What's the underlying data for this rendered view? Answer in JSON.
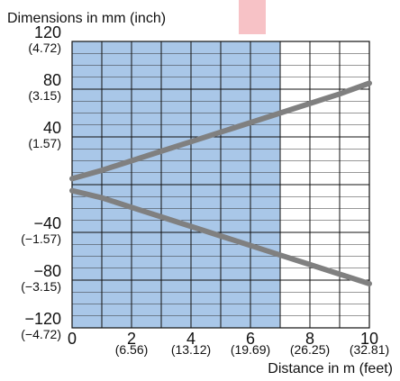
{
  "chart_data": {
    "type": "line",
    "ylabel": "Dimensions in mm (inch)",
    "xlabel": "Distance in m (feet)",
    "xlim": [
      0,
      10
    ],
    "ylim": [
      -120,
      120
    ],
    "x_ticks": [
      {
        "value": 0,
        "label": "0",
        "sublabel": ""
      },
      {
        "value": 2,
        "label": "2",
        "sublabel": "(6.56)"
      },
      {
        "value": 4,
        "label": "4",
        "sublabel": "(13.12)"
      },
      {
        "value": 6,
        "label": "6",
        "sublabel": "(19.69)"
      },
      {
        "value": 8,
        "label": "8",
        "sublabel": "(26.25)"
      },
      {
        "value": 10,
        "label": "10",
        "sublabel": "(32.81)"
      }
    ],
    "y_ticks": [
      {
        "value": 120,
        "label": "120",
        "sublabel": "(4.72)"
      },
      {
        "value": 80,
        "label": "80",
        "sublabel": "(3.15)"
      },
      {
        "value": 40,
        "label": "40",
        "sublabel": "(1.57)"
      },
      {
        "value": -40,
        "label": "−40",
        "sublabel": "(−1.57)"
      },
      {
        "value": -80,
        "label": "−80",
        "sublabel": "(−3.15)"
      },
      {
        "value": -120,
        "label": "−120",
        "sublabel": "(−4.72)"
      }
    ],
    "grid": {
      "x_step": 1,
      "y_step": 10
    },
    "shaded_region": {
      "x": [
        0,
        7
      ],
      "color": "#a9c7e8"
    },
    "series": [
      {
        "color": "#808080",
        "x": [
          0,
          1,
          2,
          3,
          4,
          5,
          6,
          7,
          8,
          9,
          10
        ],
        "y": [
          5,
          12,
          20,
          28,
          36,
          44,
          52,
          60,
          68,
          76,
          85
        ]
      },
      {
        "color": "#808080",
        "x": [
          0,
          1,
          2,
          3,
          4,
          5,
          6,
          7,
          8,
          9,
          10
        ],
        "y": [
          -5,
          -11,
          -19,
          -27,
          -35,
          -43,
          -51,
          -59,
          -67,
          -75,
          -83
        ]
      }
    ],
    "colors": {
      "grid": "#333333",
      "tick_text": "#111111",
      "corner_mark": "#f7c2c6"
    }
  }
}
